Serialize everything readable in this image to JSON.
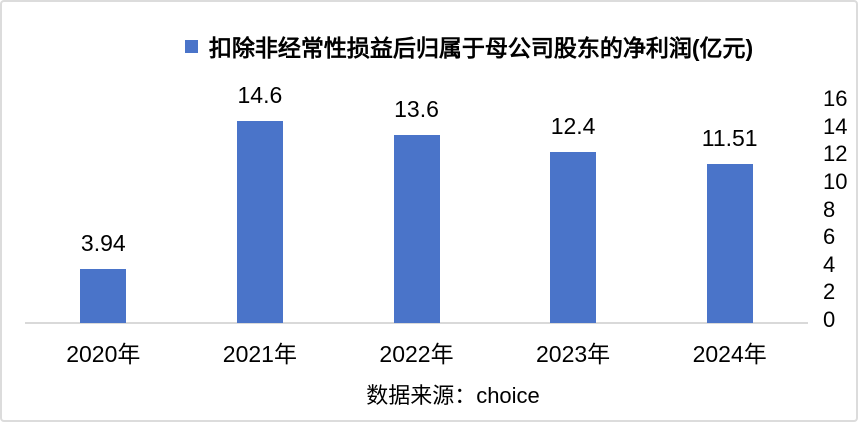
{
  "legend": {
    "label": "扣除非经常性损益后归属于母公司股东的净利润(亿元)",
    "marker_color": "#4A74C9"
  },
  "source": "数据来源：choice",
  "chart_data": {
    "type": "bar",
    "title": "扣除非经常性损益后归属于母公司股东的净利润(亿元)",
    "categories": [
      "2020年",
      "2021年",
      "2022年",
      "2023年",
      "2024年"
    ],
    "values": [
      3.94,
      14.6,
      13.6,
      12.4,
      11.51
    ],
    "value_labels": [
      "3.94",
      "14.6",
      "13.6",
      "12.4",
      "11.51"
    ],
    "xlabel": "",
    "ylabel": "",
    "ylim": [
      0,
      16
    ],
    "yticks": [
      0,
      2,
      4,
      6,
      8,
      10,
      12,
      14,
      16
    ],
    "yaxis_side": "right",
    "grid": false,
    "legend_position": "top-center",
    "bar_color": "#4A74C9",
    "axis_line_color": "#D9D9D9",
    "source": "数据来源：choice"
  }
}
